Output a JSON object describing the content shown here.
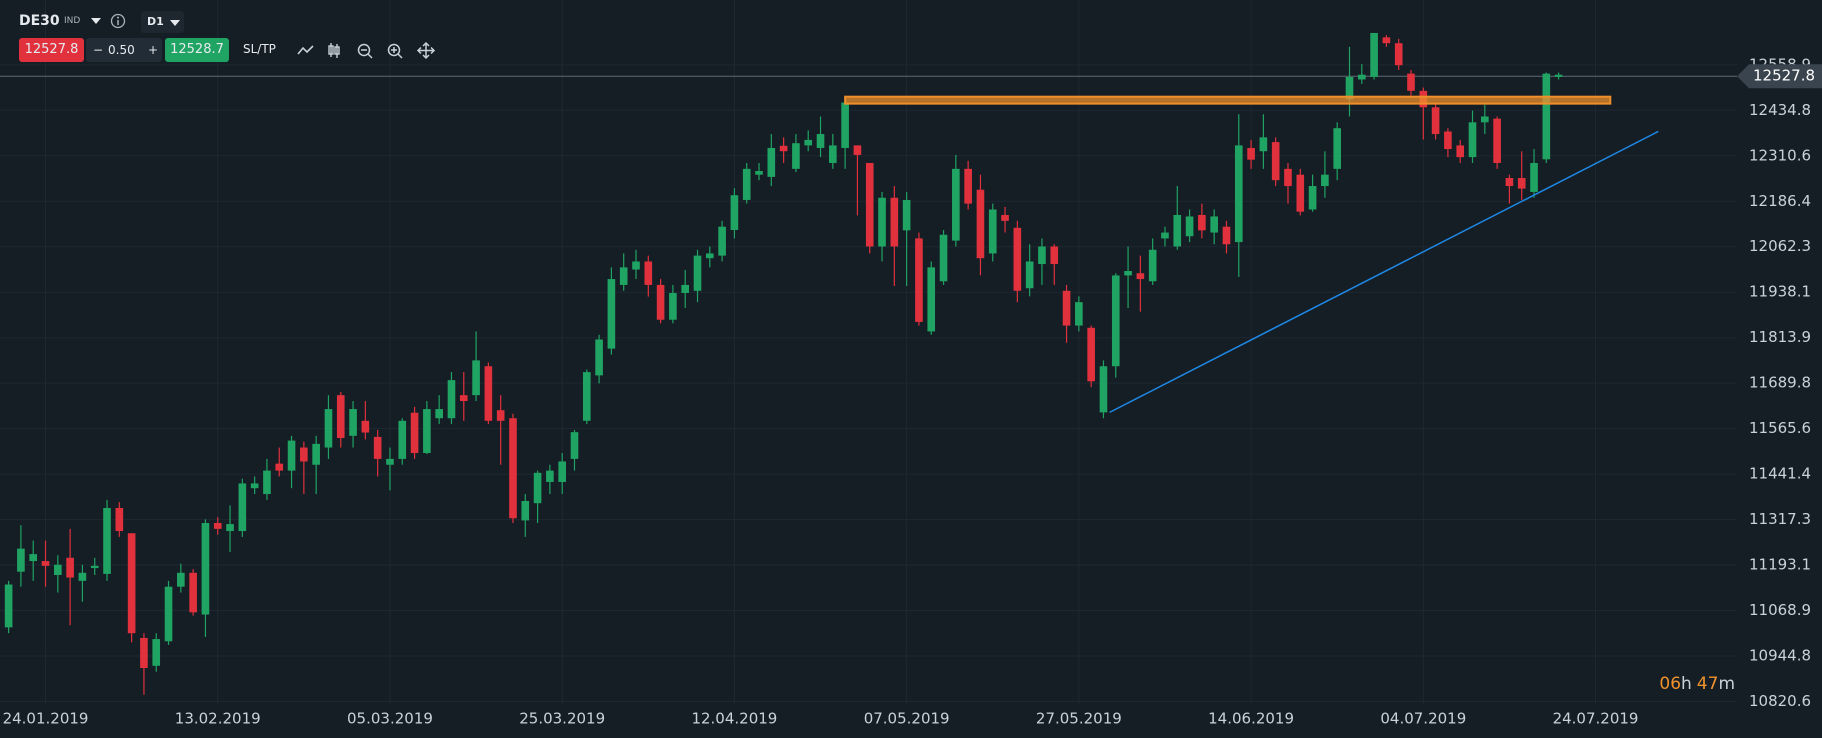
{
  "toolbar": {
    "symbol": "DE30",
    "market": "IND",
    "timeframe": "D1",
    "sell": "12527.8",
    "minus": "−",
    "spread": "0.50",
    "plus": "+",
    "buy": "12528.7",
    "sltp": "SL/TP"
  },
  "timer": {
    "hours": "06",
    "h": "h",
    "minutes": "47",
    "m": "m"
  },
  "chart_data": {
    "type": "candlestick",
    "up_color": "#1fa463",
    "down_color": "#e0313d",
    "grid": true,
    "x": [
      0,
      1,
      2,
      3,
      4,
      5,
      6,
      7,
      8,
      9,
      10,
      11,
      12,
      13,
      14,
      15,
      16,
      17,
      18,
      19,
      20,
      21,
      22,
      23,
      24,
      25,
      26,
      27,
      28,
      29,
      30,
      31,
      32,
      33,
      34,
      35,
      36,
      37,
      38,
      39,
      40,
      41,
      42,
      43,
      44,
      45,
      46,
      47,
      48,
      49,
      50,
      51,
      52,
      53,
      54,
      55,
      56,
      57,
      58,
      59,
      60,
      61,
      62,
      63,
      64,
      65,
      66,
      67,
      68,
      69,
      70,
      71,
      72,
      73,
      74,
      75,
      76,
      77,
      78,
      79,
      80,
      81,
      82,
      83,
      84,
      85,
      86,
      87,
      88,
      89,
      90,
      91,
      92,
      93,
      94,
      95,
      96,
      97,
      98,
      99,
      100,
      101,
      102,
      103,
      104,
      105,
      106,
      107,
      108,
      109,
      110,
      111,
      112,
      113,
      114,
      115,
      116,
      117,
      118,
      119,
      120,
      121,
      122,
      123,
      124,
      125,
      126
    ],
    "open": [
      11023,
      11175,
      11204,
      11204,
      11166,
      11213,
      11150,
      11185,
      11169,
      11349,
      11280,
      10994,
      10918,
      10985,
      11134,
      11172,
      11058,
      11308,
      11286,
      11286,
      11403,
      11387,
      11470,
      11451,
      11514,
      11467,
      11514,
      11657,
      11546,
      11587,
      11543,
      11467,
      11483,
      11609,
      11499,
      11594,
      11594,
      11657,
      11657,
      11736,
      11616,
      11594,
      11315,
      11362,
      11420,
      11420,
      11483,
      11587,
      11711,
      11784,
      11958,
      12000,
      12022,
      11958,
      11863,
      11936,
      11942,
      12031,
      12038,
      12108,
      12190,
      12259,
      12253,
      12338,
      12275,
      12339,
      12332,
      12291,
      12332,
      12339,
      12291,
      12063,
      12196,
      12107,
      12085,
      11831,
      11968,
      12079,
      12275,
      12218,
      12044,
      12149,
      12114,
      11949,
      12015,
      12063,
      11942,
      11847,
      11841,
      11610,
      11736,
      11984,
      11990,
      11968,
      12085,
      12063,
      12091,
      12149,
      12101,
      12117,
      12075,
      12332,
      12323,
      12348,
      12275,
      12259,
      12164,
      12228,
      12275,
      12465,
      12519,
      12526,
      12634,
      12618,
      12535,
      12488,
      12443,
      12377,
      12339,
      12307,
      12402,
      12412,
      12250,
      12250,
      12212,
      12301,
      12526
    ],
    "high": [
      11150,
      11302,
      11260,
      11260,
      11220,
      11292,
      11194,
      11213,
      11371,
      11365,
      11280,
      11007,
      11007,
      11150,
      11197,
      11182,
      11318,
      11324,
      11356,
      11429,
      11435,
      11483,
      11514,
      11546,
      11530,
      11546,
      11657,
      11666,
      11641,
      11641,
      11562,
      11514,
      11594,
      11625,
      11641,
      11657,
      11720,
      11720,
      11831,
      11746,
      11657,
      11606,
      11387,
      11451,
      11467,
      11499,
      11562,
      11727,
      11822,
      12006,
      12044,
      12054,
      12038,
      11974,
      11958,
      11999,
      12054,
      12063,
      12133,
      12222,
      12291,
      12291,
      12370,
      12361,
      12370,
      12380,
      12418,
      12370,
      12465,
      12339,
      12291,
      12212,
      12228,
      12212,
      12101,
      12022,
      12108,
      12313,
      12297,
      12259,
      12180,
      12171,
      12133,
      12069,
      12085,
      12069,
      11958,
      11927,
      11847,
      11752,
      11990,
      12063,
      12038,
      12085,
      12117,
      12228,
      12164,
      12180,
      12164,
      12133,
      12424,
      12354,
      12424,
      12361,
      12291,
      12275,
      12259,
      12323,
      12402,
      12608,
      12561,
      12646,
      12640,
      12630,
      12545,
      12497,
      12456,
      12386,
      12354,
      12434,
      12450,
      12418,
      12259,
      12323,
      12329,
      12538,
      12538
    ],
    "low": [
      11007,
      11134,
      11150,
      11134,
      11118,
      11029,
      11093,
      11166,
      11150,
      11270,
      10982,
      10839,
      10902,
      10975,
      11118,
      11055,
      10997,
      11276,
      11229,
      11270,
      11387,
      11371,
      11435,
      11403,
      11387,
      11387,
      11483,
      11514,
      11514,
      11536,
      11435,
      11397,
      11467,
      11483,
      11496,
      11578,
      11578,
      11587,
      11641,
      11578,
      11467,
      11308,
      11270,
      11308,
      11387,
      11387,
      11451,
      11578,
      11689,
      11768,
      11942,
      11974,
      11926,
      11853,
      11853,
      11895,
      11911,
      12006,
      12022,
      12085,
      12180,
      12244,
      12228,
      12291,
      12266,
      12323,
      12307,
      12275,
      12275,
      12148,
      12044,
      12022,
      11955,
      11955,
      11847,
      11822,
      11958,
      12063,
      12164,
      11984,
      12022,
      12101,
      11911,
      11927,
      11958,
      11958,
      11800,
      11831,
      11679,
      11594,
      11705,
      11895,
      11885,
      11958,
      12063,
      12054,
      12075,
      12085,
      12069,
      12044,
      11980,
      12275,
      12275,
      12228,
      12180,
      12148,
      12158,
      12196,
      12244,
      12418,
      12507,
      12519,
      12608,
      12545,
      12475,
      12355,
      12355,
      12307,
      12291,
      12291,
      12370,
      12275,
      12180,
      12190,
      12196,
      12291,
      12519
    ],
    "close": [
      11140,
      11238,
      11223,
      11191,
      11194,
      11159,
      11172,
      11191,
      11349,
      11286,
      11007,
      10912,
      10991,
      11134,
      11172,
      11064,
      11308,
      11292,
      11305,
      11416,
      11416,
      11451,
      11451,
      11533,
      11476,
      11524,
      11619,
      11540,
      11619,
      11555,
      11483,
      11483,
      11587,
      11499,
      11619,
      11619,
      11698,
      11641,
      11752,
      11587,
      11587,
      11321,
      11368,
      11445,
      11451,
      11476,
      11556,
      11720,
      11809,
      11974,
      12006,
      12022,
      11958,
      11863,
      11936,
      11958,
      12038,
      12044,
      12117,
      12203,
      12275,
      12269,
      12332,
      12323,
      12345,
      12354,
      12370,
      12339,
      12456,
      12313,
      12063,
      12196,
      12063,
      12190,
      11857,
      12006,
      12095,
      12275,
      12180,
      12031,
      12164,
      12133,
      11942,
      12022,
      12063,
      12015,
      11847,
      11911,
      11695,
      11736,
      11984,
      11996,
      11974,
      12054,
      12101,
      12149,
      12145,
      12107,
      12145,
      12069,
      12339,
      12300,
      12361,
      12244,
      12228,
      12158,
      12228,
      12259,
      12386,
      12526,
      12532,
      12646,
      12618,
      12558,
      12488,
      12443,
      12370,
      12329,
      12307,
      12402,
      12418,
      12291,
      12228,
      12221,
      12291,
      12535,
      12532
    ],
    "xlim": [
      -0.7,
      140.5
    ],
    "xticks": [
      {
        "value": 3,
        "label": "24.01.2019"
      },
      {
        "value": 17,
        "label": "13.02.2019"
      },
      {
        "value": 31,
        "label": "05.03.2019"
      },
      {
        "value": 45,
        "label": "25.03.2019"
      },
      {
        "value": 59,
        "label": "12.04.2019"
      },
      {
        "value": 73,
        "label": "07.05.2019"
      },
      {
        "value": 87,
        "label": "27.05.2019"
      },
      {
        "value": 101,
        "label": "14.06.2019"
      },
      {
        "value": 115,
        "label": "04.07.2019"
      },
      {
        "value": 129,
        "label": "24.07.2019"
      }
    ],
    "ylim": [
      10811,
      12736
    ],
    "yticks": [
      10820.6,
      10944.8,
      11068.9,
      11193.1,
      11317.3,
      11441.4,
      11565.6,
      11689.8,
      11813.9,
      11938.1,
      12062.3,
      12186.4,
      12310.6,
      12434.8,
      12558.9
    ],
    "price_line": 12527.8,
    "zone": {
      "x": [
        68,
        130.2
      ],
      "y": [
        12453,
        12472
      ],
      "color": "#ee8f2c"
    },
    "trendline": {
      "x": [
        89.5,
        134.1
      ],
      "y": [
        11610,
        12377
      ],
      "color": "#1e88e5"
    }
  }
}
